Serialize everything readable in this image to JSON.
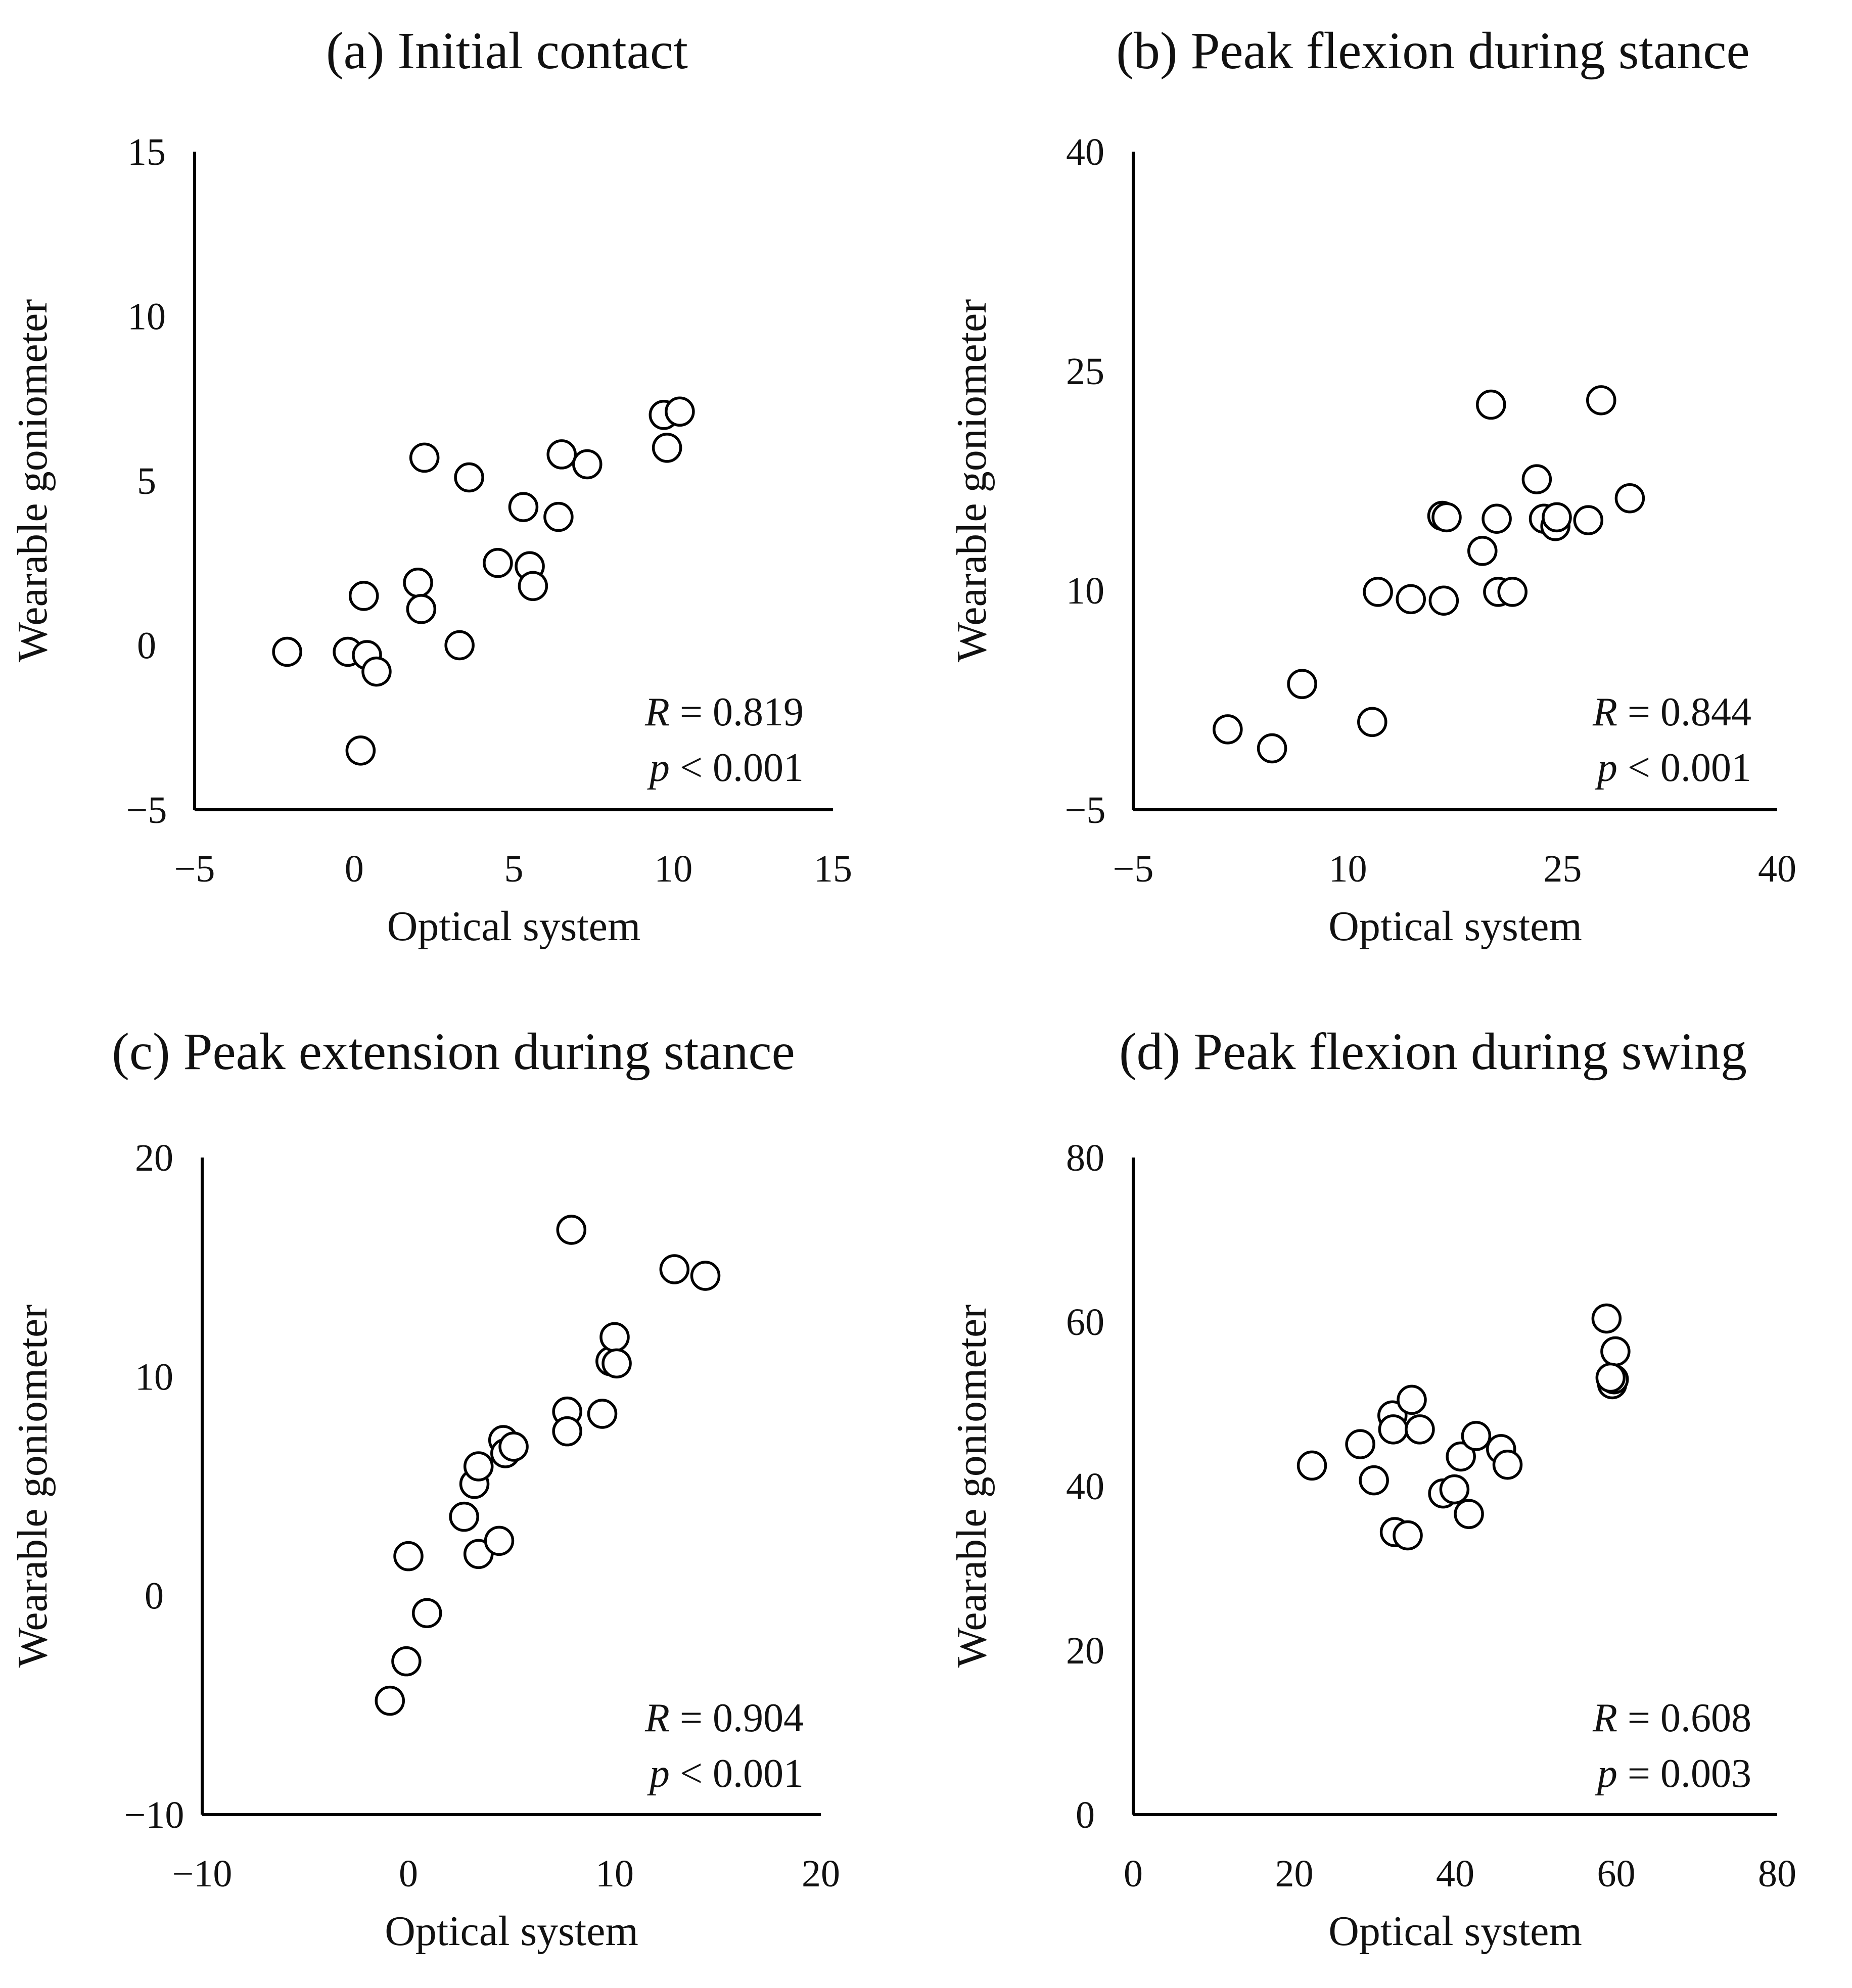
{
  "chart_data": [
    {
      "type": "scatter",
      "title": "(a) Initial contact",
      "xlabel": "Optical system",
      "ylabel": "Wearable goniometer",
      "xlim": [
        -5,
        15
      ],
      "ylim": [
        -5,
        15
      ],
      "xticks": [
        "−5",
        "0",
        "5",
        "10",
        "15"
      ],
      "yticks": [
        "−5",
        "0",
        "5",
        "10",
        "15"
      ],
      "stats": {
        "r_label": "R",
        "r_text": " = 0.819",
        "p_label": "p",
        "p_text": " < 0.001"
      },
      "x": [
        -2.1,
        -0.2,
        0.3,
        0.4,
        0.7,
        0.2,
        2.0,
        2.1,
        2.2,
        3.3,
        3.6,
        4.5,
        5.3,
        5.5,
        5.6,
        6.4,
        6.5,
        7.3,
        9.7,
        9.8,
        10.2
      ],
      "y": [
        -0.2,
        -0.2,
        1.5,
        -0.3,
        -0.8,
        -3.2,
        1.9,
        1.1,
        5.7,
        0.0,
        5.1,
        2.5,
        4.2,
        2.4,
        1.8,
        3.9,
        5.8,
        5.5,
        7.0,
        6.0,
        7.1
      ]
    },
    {
      "type": "scatter",
      "title": "(b) Peak flexion during stance",
      "xlabel": "Optical system",
      "ylabel": "Wearable goniometer",
      "xlim": [
        -5,
        40
      ],
      "ylim": [
        -5,
        40
      ],
      "xticks": [
        "−5",
        "10",
        "25",
        "40"
      ],
      "yticks": [
        "−5",
        "10",
        "25",
        "40"
      ],
      "stats": {
        "r_label": "R",
        "r_text": " = 0.844",
        "p_label": "p",
        "p_text": " < 0.001"
      },
      "x": [
        1.6,
        4.7,
        6.8,
        11.7,
        12.1,
        14.4,
        16.6,
        16.9,
        16.7,
        19.4,
        20.0,
        20.4,
        20.5,
        21.5,
        23.2,
        23.7,
        24.5,
        24.6,
        26.8,
        27.7,
        29.7
      ],
      "y": [
        0.5,
        -0.8,
        3.6,
        1.0,
        9.9,
        9.4,
        15.1,
        15.0,
        9.3,
        12.7,
        22.7,
        14.9,
        9.9,
        9.9,
        17.6,
        14.9,
        14.4,
        15.0,
        14.8,
        23.0,
        16.3
      ]
    },
    {
      "type": "scatter",
      "title": "(c) Peak extension during stance",
      "xlabel": "Optical system",
      "ylabel": "Wearable goniometer",
      "xlim": [
        -10,
        20
      ],
      "ylim": [
        -10,
        20
      ],
      "xticks": [
        "−10",
        "0",
        "10",
        "20"
      ],
      "yticks": [
        "−10",
        "0",
        "10",
        "20"
      ],
      "stats": {
        "r_label": "R",
        "r_text": " = 0.904",
        "p_label": "p",
        "p_text": " < 0.001"
      },
      "x": [
        -0.9,
        -0.1,
        0.0,
        0.9,
        2.7,
        3.2,
        3.4,
        3.4,
        4.4,
        4.6,
        4.7,
        5.1,
        7.7,
        7.7,
        7.9,
        9.4,
        9.8,
        10.0,
        10.1,
        12.9,
        14.4
      ],
      "y": [
        -4.8,
        -3.0,
        1.8,
        -0.8,
        3.6,
        5.1,
        5.9,
        1.9,
        2.5,
        7.1,
        6.5,
        6.8,
        8.4,
        7.5,
        16.7,
        8.3,
        10.7,
        11.8,
        10.6,
        14.9,
        14.6
      ]
    },
    {
      "type": "scatter",
      "title": "(d) Peak flexion during swing",
      "xlabel": "Optical system",
      "ylabel": "Wearable goniometer",
      "xlim": [
        0,
        80
      ],
      "ylim": [
        0,
        80
      ],
      "xticks": [
        "0",
        "20",
        "40",
        "60",
        "80"
      ],
      "yticks": [
        "0",
        "20",
        "40",
        "60",
        "80"
      ],
      "stats": {
        "r_label": "R",
        "r_text": " = 0.608",
        "p_label": "p",
        "p_text": " = 0.003"
      },
      "x": [
        22.2,
        28.2,
        29.9,
        32.2,
        32.3,
        32.5,
        34.1,
        34.6,
        35.6,
        38.5,
        39.9,
        40.7,
        41.7,
        42.6,
        45.7,
        46.5,
        58.8,
        59.9,
        59.5,
        59.7,
        59.3
      ],
      "y": [
        42.5,
        45.1,
        40.7,
        48.6,
        46.9,
        34.4,
        34.0,
        50.5,
        46.9,
        39.1,
        39.6,
        43.6,
        36.6,
        46.1,
        44.5,
        42.6,
        60.4,
        56.4,
        52.4,
        53.0,
        53.2
      ]
    }
  ]
}
